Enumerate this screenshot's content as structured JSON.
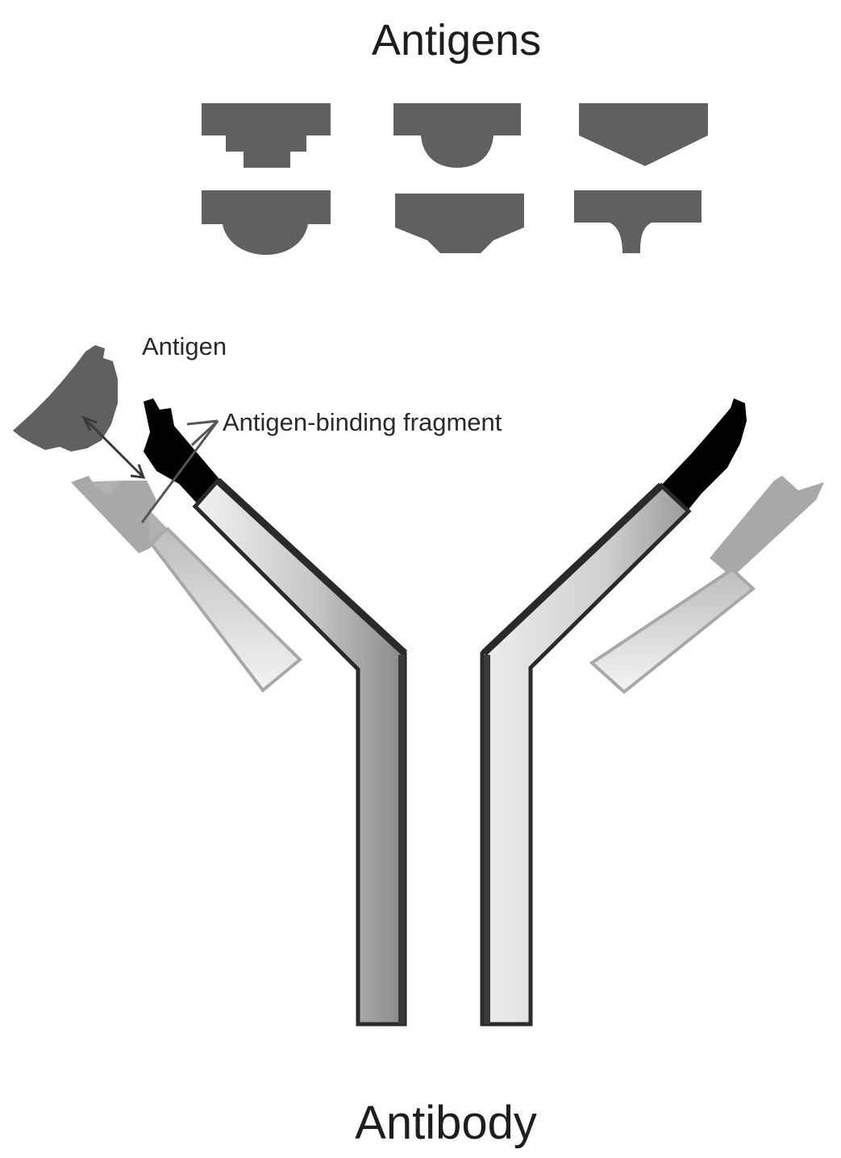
{
  "labels": {
    "antigens_title": "Antigens",
    "antigen_label": "Antigen",
    "fab_label": "Antigen-binding fragment",
    "antibody_title": "Antibody"
  },
  "colors": {
    "antigen_fill": "#606060",
    "antigen_light": "#a8a8a8",
    "heavy_chain_edge": "#2a2a2a",
    "variable_region": "#000000",
    "background": "#ffffff"
  },
  "antigen_shapes": [
    {
      "row": 1,
      "col": 1,
      "shape": "stepped"
    },
    {
      "row": 1,
      "col": 2,
      "shape": "rounded"
    },
    {
      "row": 1,
      "col": 3,
      "shape": "pointed"
    },
    {
      "row": 2,
      "col": 1,
      "shape": "rounded"
    },
    {
      "row": 2,
      "col": 2,
      "shape": "tapered"
    },
    {
      "row": 2,
      "col": 3,
      "shape": "stem"
    }
  ]
}
